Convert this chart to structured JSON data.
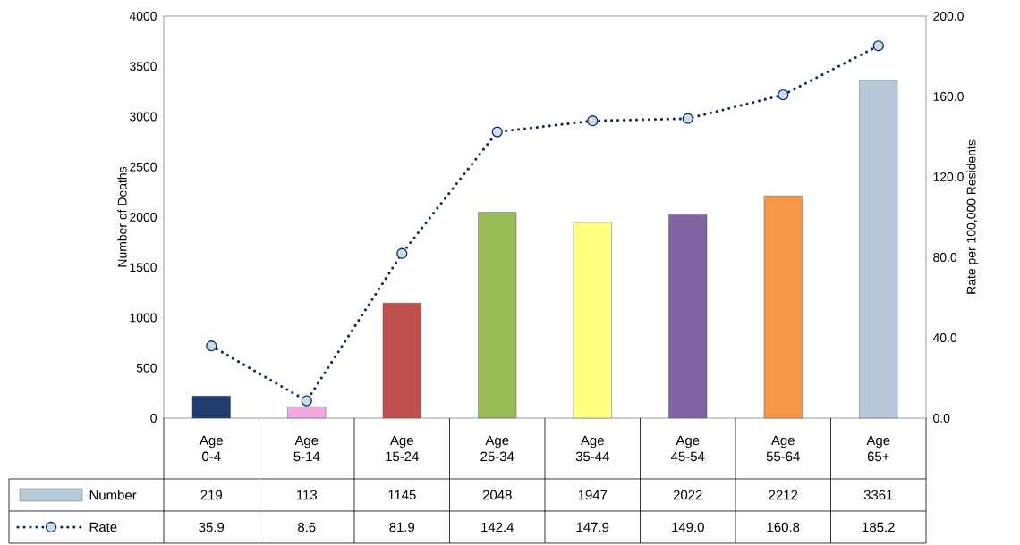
{
  "chart_data": {
    "type": "bar",
    "categories": [
      "Age 0-4",
      "Age 5-14",
      "Age 15-24",
      "Age 25-34",
      "Age 35-44",
      "Age 45-54",
      "Age 55-64",
      "Age 65+"
    ],
    "ylabel": "Number of Deaths",
    "y2label": "Rate per 100,000 Residents",
    "ylim": [
      0,
      4000
    ],
    "yticks": [
      0,
      500,
      1000,
      1500,
      2000,
      2500,
      3000,
      3500,
      4000
    ],
    "y2lim": [
      0,
      200
    ],
    "y2ticks": [
      {
        "value": 0,
        "label": "0.0"
      },
      {
        "value": 40,
        "label": "40.0"
      },
      {
        "value": 80,
        "label": "80.0"
      },
      {
        "value": 120,
        "label": "120.0"
      },
      {
        "value": 160,
        "label": "160.0"
      },
      {
        "value": 200,
        "label": "200.0"
      }
    ],
    "series": [
      {
        "name": "Number",
        "color": "#b9cad8",
        "colors": [
          "#1f3c6e",
          "#f4a6e0",
          "#c0504d",
          "#9bbb59",
          "#ffff80",
          "#8064a2",
          "#f79646",
          "#b8c8d8"
        ],
        "values": [
          219,
          113,
          1145,
          2048,
          1947,
          2022,
          2212,
          3361
        ]
      },
      {
        "name": "Rate",
        "type": "line",
        "axis": "y2",
        "color": "#0f2a5c",
        "marker": "circle",
        "line_style": "dotted",
        "values": [
          35.9,
          8.6,
          81.9,
          142.4,
          147.9,
          149.0,
          160.8,
          185.2
        ],
        "value_labels": [
          "35.9",
          "8.6",
          "81.9",
          "142.4",
          "147.9",
          "149.0",
          "160.8",
          "185.2"
        ]
      }
    ],
    "data_labels": true,
    "legend": "bottom"
  }
}
